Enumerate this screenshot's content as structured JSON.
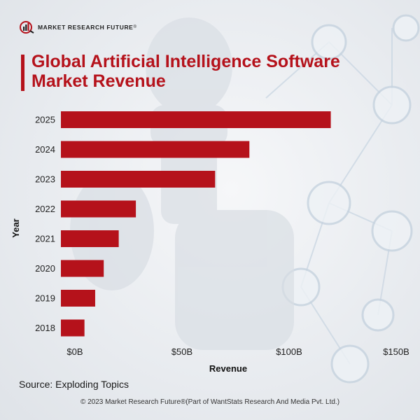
{
  "brand": {
    "name": "MARKET RESEARCH FUTURE",
    "reg_mark": "®"
  },
  "colors": {
    "bar": "#b5121b",
    "title": "#b5121b"
  },
  "chart_data": {
    "type": "bar",
    "orientation": "horizontal",
    "title": "Global Artificial Intelligence Software Market Revenue",
    "categories": [
      "2025",
      "2024",
      "2023",
      "2022",
      "2021",
      "2020",
      "2019",
      "2018"
    ],
    "values": [
      126,
      88,
      72,
      35,
      27,
      20,
      16,
      11
    ],
    "unit": "USD billions",
    "xlabel": "Revenue",
    "ylabel": "Year",
    "xlim": [
      0,
      150
    ],
    "xticks": [
      {
        "value": 0,
        "label": "$0B"
      },
      {
        "value": 50,
        "label": "$50B"
      },
      {
        "value": 100,
        "label": "$100B"
      },
      {
        "value": 150,
        "label": "$150B"
      }
    ],
    "grid": false,
    "legend": "none"
  },
  "source": "Source: Exploding Topics",
  "copyright": "© 2023 Market Research Future®(Part of WantStats Research And Media Pvt. Ltd.)"
}
